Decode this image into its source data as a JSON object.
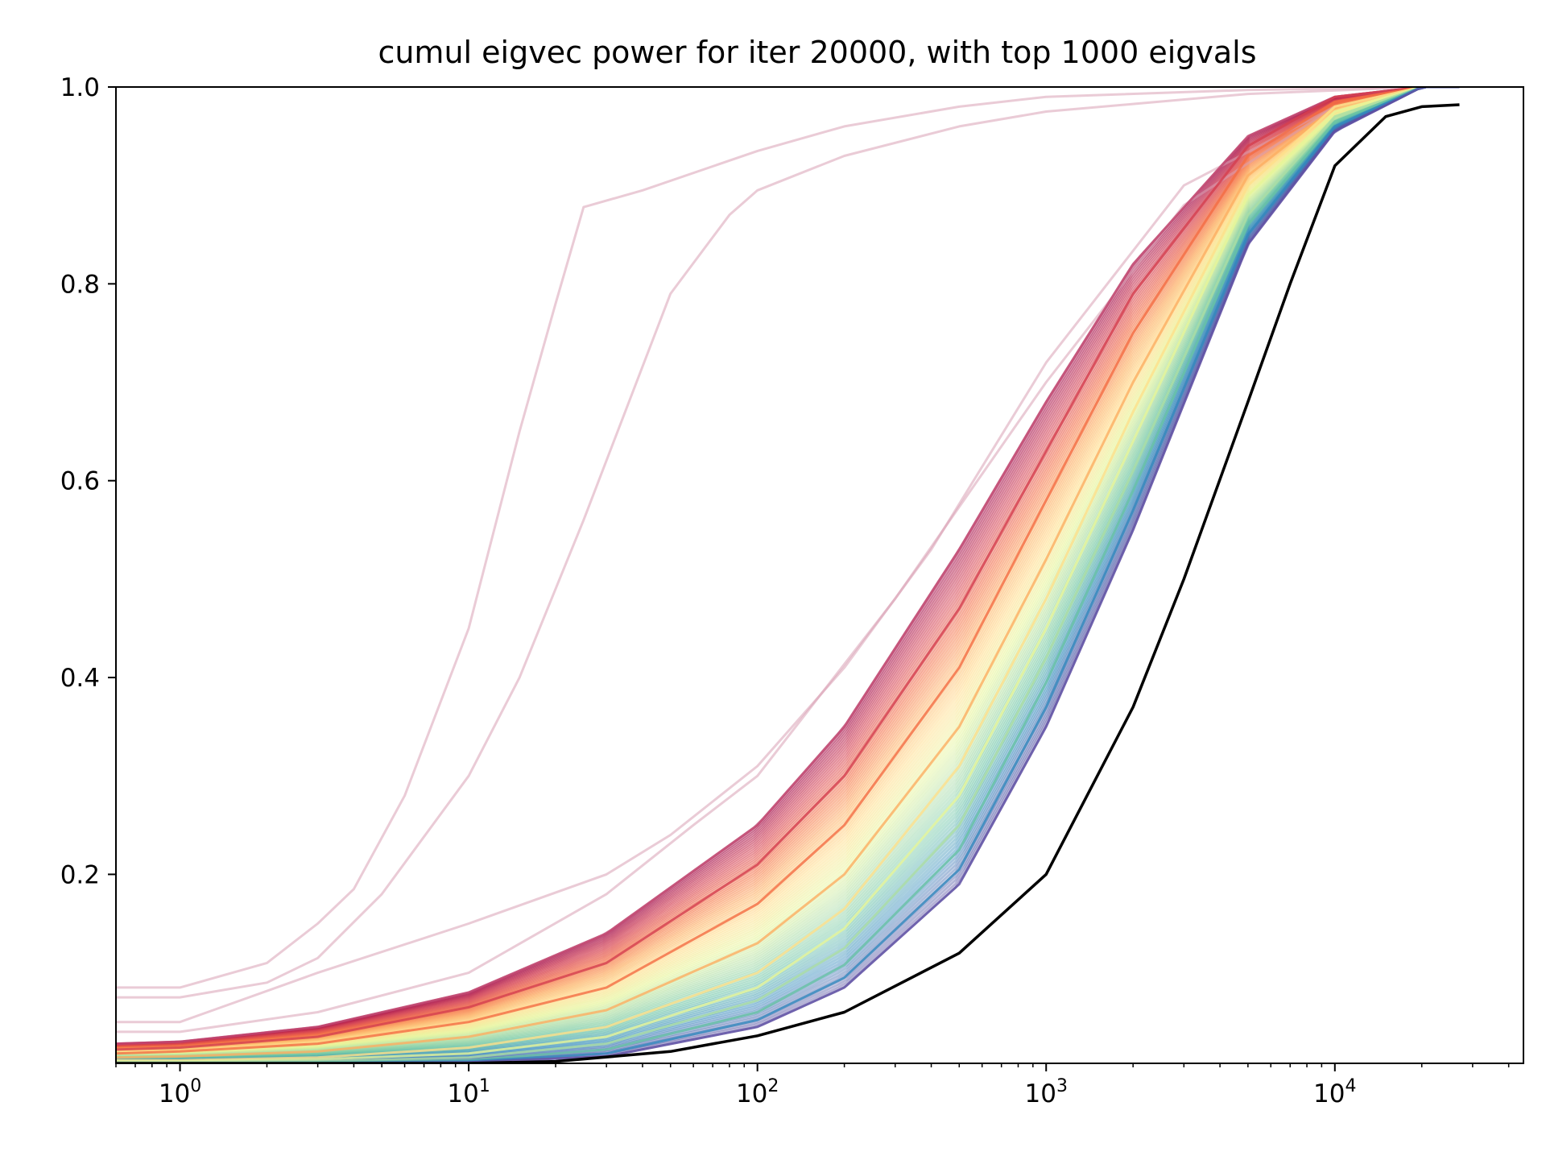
{
  "chart_data": {
    "type": "line",
    "title": "cumul eigvec power for iter 20000, with top 1000 eigvals",
    "xlabel": "",
    "ylabel": "",
    "xscale": "log",
    "xlim": [
      0.6,
      45000
    ],
    "ylim": [
      0.008,
      1.0
    ],
    "grid": false,
    "legend": "none",
    "x_ticks": [
      {
        "value": 1,
        "base": "10",
        "exp": "0"
      },
      {
        "value": 10,
        "base": "10",
        "exp": "1"
      },
      {
        "value": 100,
        "base": "10",
        "exp": "2"
      },
      {
        "value": 1000,
        "base": "10",
        "exp": "3"
      },
      {
        "value": 10000,
        "base": "10",
        "exp": "4"
      }
    ],
    "y_ticks": [
      {
        "value": 0.2,
        "label": "0.2"
      },
      {
        "value": 0.4,
        "label": "0.4"
      },
      {
        "value": 0.6,
        "label": "0.6"
      },
      {
        "value": 0.8,
        "label": "0.8"
      },
      {
        "value": 1.0,
        "label": "1.0"
      }
    ],
    "colors": {
      "black_curve": "#000000",
      "faint_outlier": "#d9a1b5",
      "spectral_ramp": [
        "#9e0142",
        "#d53e4f",
        "#f46d43",
        "#fdae61",
        "#fee08b",
        "#e6f598",
        "#abdda4",
        "#66c2a5",
        "#3288bd",
        "#5e4fa2"
      ]
    },
    "series": [
      {
        "color": "#000000",
        "x": [
          0.6,
          10,
          20,
          50,
          100,
          200,
          500,
          1000,
          2000,
          3000,
          5000,
          7000,
          10000,
          15000,
          20000,
          27000
        ],
        "y": [
          0.008,
          0.008,
          0.01,
          0.02,
          0.036,
          0.06,
          0.12,
          0.2,
          0.37,
          0.5,
          0.68,
          0.8,
          0.92,
          0.97,
          0.98,
          0.982
        ]
      },
      {
        "color": "#d9a1b5",
        "x": [
          0.6,
          1,
          2,
          3,
          4,
          6,
          10,
          15,
          20,
          25,
          40,
          100,
          200,
          500,
          1000,
          5000,
          20000,
          27000
        ],
        "y": [
          0.085,
          0.085,
          0.11,
          0.15,
          0.185,
          0.28,
          0.45,
          0.65,
          0.78,
          0.878,
          0.895,
          0.935,
          0.96,
          0.98,
          0.99,
          0.997,
          1.0,
          1.0
        ]
      },
      {
        "color": "#d9a1b5",
        "x": [
          0.6,
          1,
          2,
          3,
          5,
          10,
          15,
          25,
          50,
          80,
          100,
          200,
          500,
          1000,
          5000,
          20000,
          27000
        ],
        "y": [
          0.075,
          0.075,
          0.09,
          0.115,
          0.18,
          0.3,
          0.4,
          0.56,
          0.79,
          0.87,
          0.895,
          0.93,
          0.96,
          0.975,
          0.993,
          1.0,
          1.0
        ]
      },
      {
        "color": "#d9a1b5",
        "x": [
          0.6,
          1,
          3,
          10,
          30,
          50,
          100,
          200,
          400,
          1000,
          3000,
          10000,
          20000,
          27000
        ],
        "y": [
          0.05,
          0.05,
          0.1,
          0.15,
          0.2,
          0.24,
          0.31,
          0.41,
          0.53,
          0.72,
          0.9,
          0.98,
          1.0,
          1.0
        ]
      },
      {
        "color": "#d9a1b5",
        "x": [
          0.6,
          1,
          3,
          10,
          30,
          60,
          100,
          300,
          1000,
          3000,
          10000,
          20000,
          27000
        ],
        "y": [
          0.04,
          0.04,
          0.06,
          0.1,
          0.18,
          0.25,
          0.3,
          0.48,
          0.7,
          0.88,
          0.98,
          1.0,
          1.0
        ]
      },
      {
        "color": "#c34a72",
        "x": [
          0.6,
          1,
          3,
          10,
          30,
          100,
          200,
          500,
          1000,
          2000,
          5000,
          10000,
          20000,
          27000
        ],
        "y": [
          0.028,
          0.03,
          0.045,
          0.08,
          0.14,
          0.25,
          0.35,
          0.53,
          0.68,
          0.82,
          0.95,
          0.99,
          1.0,
          1.0
        ]
      },
      {
        "color": "#d53e4f",
        "x": [
          0.6,
          1,
          3,
          10,
          30,
          100,
          200,
          500,
          1000,
          2000,
          5000,
          10000,
          20000,
          27000
        ],
        "y": [
          0.022,
          0.024,
          0.035,
          0.065,
          0.11,
          0.21,
          0.3,
          0.47,
          0.63,
          0.79,
          0.94,
          0.99,
          1.0,
          1.0
        ]
      },
      {
        "color": "#f46d43",
        "x": [
          0.6,
          1,
          3,
          10,
          30,
          100,
          200,
          500,
          1000,
          2000,
          5000,
          10000,
          20000,
          27000
        ],
        "y": [
          0.018,
          0.02,
          0.028,
          0.05,
          0.085,
          0.17,
          0.25,
          0.41,
          0.58,
          0.75,
          0.93,
          0.985,
          1.0,
          1.0
        ]
      },
      {
        "color": "#fdae61",
        "x": [
          0.6,
          1,
          3,
          10,
          30,
          100,
          200,
          500,
          1000,
          2000,
          5000,
          10000,
          20000,
          27000
        ],
        "y": [
          0.014,
          0.015,
          0.02,
          0.035,
          0.062,
          0.13,
          0.2,
          0.35,
          0.52,
          0.7,
          0.91,
          0.98,
          1.0,
          1.0
        ]
      },
      {
        "color": "#fee08b",
        "x": [
          0.6,
          1,
          3,
          10,
          30,
          100,
          200,
          500,
          1000,
          2000,
          5000,
          10000,
          20000,
          27000
        ],
        "y": [
          0.011,
          0.011,
          0.014,
          0.024,
          0.045,
          0.1,
          0.165,
          0.31,
          0.48,
          0.67,
          0.9,
          0.98,
          1.0,
          1.0
        ]
      },
      {
        "color": "#e6f598",
        "x": [
          0.6,
          1,
          3,
          10,
          30,
          100,
          200,
          500,
          1000,
          2000,
          5000,
          10000,
          20000,
          27000
        ],
        "y": [
          0.01,
          0.01,
          0.012,
          0.018,
          0.035,
          0.085,
          0.145,
          0.28,
          0.45,
          0.64,
          0.89,
          0.975,
          1.0,
          1.0
        ]
      },
      {
        "color": "#abdda4",
        "x": [
          0.6,
          1,
          3,
          10,
          30,
          100,
          200,
          500,
          1000,
          2000,
          5000,
          10000,
          20000,
          27000
        ],
        "y": [
          0.009,
          0.009,
          0.01,
          0.014,
          0.028,
          0.072,
          0.125,
          0.25,
          0.42,
          0.61,
          0.87,
          0.97,
          1.0,
          1.0
        ]
      },
      {
        "color": "#66c2a5",
        "x": [
          0.6,
          1,
          3,
          10,
          30,
          100,
          200,
          500,
          1000,
          2000,
          5000,
          10000,
          20000,
          27000
        ],
        "y": [
          0.008,
          0.008,
          0.009,
          0.011,
          0.022,
          0.06,
          0.108,
          0.225,
          0.395,
          0.59,
          0.86,
          0.965,
          1.0,
          1.0
        ]
      },
      {
        "color": "#3288bd",
        "x": [
          0.6,
          1,
          3,
          10,
          30,
          100,
          200,
          500,
          1000,
          2000,
          5000,
          10000,
          20000,
          27000
        ],
        "y": [
          0.008,
          0.008,
          0.008,
          0.01,
          0.018,
          0.052,
          0.095,
          0.205,
          0.37,
          0.57,
          0.85,
          0.96,
          1.0,
          1.0
        ]
      },
      {
        "color": "#5e4fa2",
        "x": [
          0.6,
          1,
          3,
          10,
          30,
          100,
          200,
          500,
          1000,
          2000,
          5000,
          10000,
          20000,
          27000
        ],
        "y": [
          0.008,
          0.008,
          0.008,
          0.009,
          0.015,
          0.045,
          0.085,
          0.19,
          0.35,
          0.55,
          0.84,
          0.955,
          1.0,
          1.0
        ]
      }
    ]
  }
}
